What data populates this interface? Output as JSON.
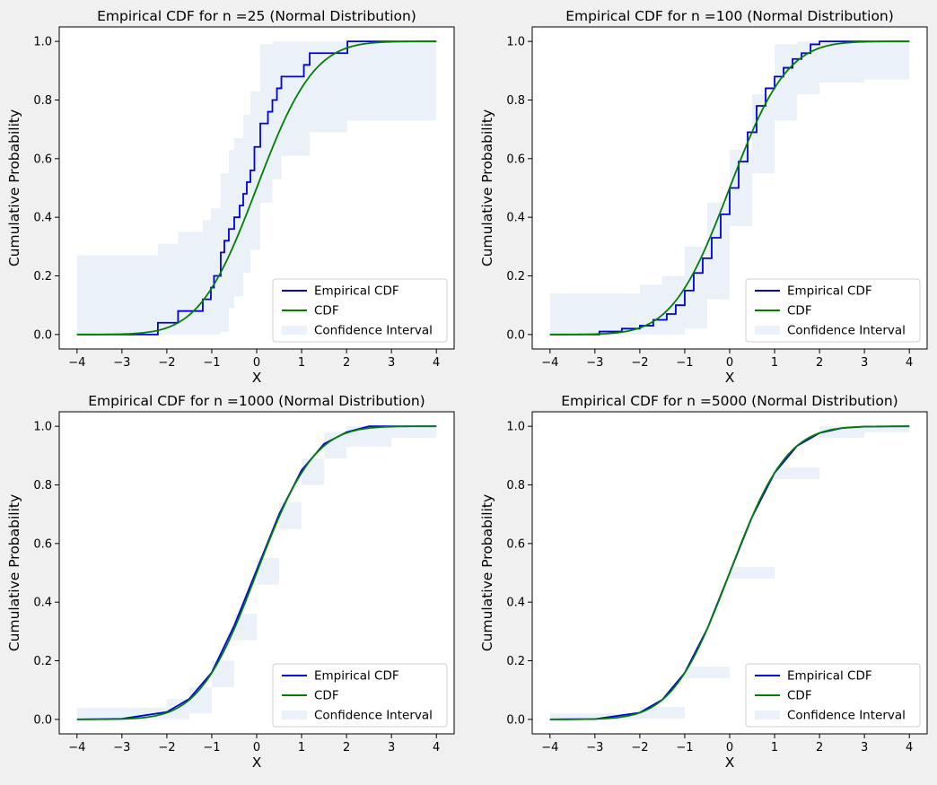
{
  "figure": {
    "background": "#f0f0f0"
  },
  "chart_data": [
    {
      "type": "line",
      "title": "Empirical CDF for n =25 (Normal Distribution)",
      "xlabel": "X",
      "ylabel": "Cumulative Probability",
      "xlim": [
        -4,
        4
      ],
      "ylim": [
        0,
        1
      ],
      "xticks": [
        -4,
        -3,
        -2,
        -1,
        0,
        1,
        2,
        3,
        4
      ],
      "yticks": [
        0.0,
        0.2,
        0.4,
        0.6,
        0.8,
        1.0
      ],
      "xtick_labels": [
        "−4",
        "−3",
        "−2",
        "−1",
        "0",
        "1",
        "2",
        "3",
        "4"
      ],
      "ytick_labels": [
        "0.0",
        "0.2",
        "0.4",
        "0.6",
        "0.8",
        "1.0"
      ],
      "grid": false,
      "legend": "lower-right",
      "colors": {
        "ecdf": "#0000e6",
        "cdf": "#008000",
        "band": "#eaf1f8"
      },
      "series": [
        {
          "name": "Empirical CDF",
          "kind": "step",
          "x": [
            -4,
            -2.2,
            -1.75,
            -1.2,
            -1.02,
            -0.95,
            -0.8,
            -0.72,
            -0.62,
            -0.5,
            -0.38,
            -0.3,
            -0.22,
            -0.14,
            -0.05,
            0.08,
            0.25,
            0.35,
            0.45,
            0.55,
            0.95,
            1.05,
            1.18,
            2.0,
            2.02,
            4
          ],
          "y": [
            0,
            0.04,
            0.08,
            0.12,
            0.16,
            0.2,
            0.28,
            0.32,
            0.36,
            0.4,
            0.44,
            0.48,
            0.52,
            0.56,
            0.64,
            0.72,
            0.76,
            0.8,
            0.84,
            0.88,
            0.88,
            0.92,
            0.96,
            0.96,
            1.0,
            1.0
          ]
        },
        {
          "name": "CDF",
          "kind": "normal-cdf",
          "mu": 0,
          "sigma": 1
        },
        {
          "name": "Confidence Interval",
          "kind": "band",
          "x": [
            -4,
            -2.2,
            -1.75,
            -1.2,
            -1.02,
            -0.8,
            -0.62,
            -0.5,
            -0.3,
            -0.14,
            0.08,
            0.35,
            0.55,
            1.18,
            2.02,
            4
          ],
          "lower": [
            0,
            0,
            0,
            0,
            0,
            0.01,
            0.09,
            0.13,
            0.21,
            0.29,
            0.45,
            0.53,
            0.61,
            0.69,
            0.73,
            0.73
          ],
          "upper": [
            0.27,
            0.31,
            0.35,
            0.39,
            0.43,
            0.55,
            0.63,
            0.67,
            0.75,
            0.83,
            0.99,
            1.0,
            1.0,
            1.0,
            1.0,
            1.0
          ]
        }
      ]
    },
    {
      "type": "line",
      "title": "Empirical CDF for n =100 (Normal Distribution)",
      "xlabel": "X",
      "ylabel": "Cumulative Probability",
      "xlim": [
        -4,
        4
      ],
      "ylim": [
        0,
        1
      ],
      "xticks": [
        -4,
        -3,
        -2,
        -1,
        0,
        1,
        2,
        3,
        4
      ],
      "yticks": [
        0.0,
        0.2,
        0.4,
        0.6,
        0.8,
        1.0
      ],
      "xtick_labels": [
        "−4",
        "−3",
        "−2",
        "−1",
        "0",
        "1",
        "2",
        "3",
        "4"
      ],
      "ytick_labels": [
        "0.0",
        "0.2",
        "0.4",
        "0.6",
        "0.8",
        "1.0"
      ],
      "grid": false,
      "legend": "lower-right",
      "colors": {
        "ecdf": "#0000e6",
        "cdf": "#008000",
        "band": "#eaf1f8"
      },
      "series": [
        {
          "name": "Empirical CDF",
          "kind": "step",
          "x": [
            -4,
            -2.9,
            -2.4,
            -2.0,
            -1.7,
            -1.4,
            -1.2,
            -1.0,
            -0.8,
            -0.6,
            -0.4,
            -0.2,
            0.0,
            0.2,
            0.4,
            0.6,
            0.8,
            1.0,
            1.2,
            1.4,
            1.6,
            1.8,
            2.0,
            4
          ],
          "y": [
            0,
            0.01,
            0.02,
            0.03,
            0.05,
            0.07,
            0.1,
            0.15,
            0.21,
            0.26,
            0.33,
            0.41,
            0.5,
            0.59,
            0.69,
            0.78,
            0.84,
            0.88,
            0.91,
            0.94,
            0.96,
            0.99,
            1.0,
            1.0
          ]
        },
        {
          "name": "CDF",
          "kind": "normal-cdf",
          "mu": 0,
          "sigma": 1
        },
        {
          "name": "Confidence Interval",
          "kind": "band",
          "x": [
            -4,
            -3,
            -2,
            -1.5,
            -1,
            -0.5,
            0,
            0.5,
            1,
            1.5,
            2,
            3,
            4
          ],
          "lower": [
            0,
            0,
            0,
            0,
            0.02,
            0.12,
            0.37,
            0.55,
            0.73,
            0.82,
            0.86,
            0.87,
            0.87
          ],
          "upper": [
            0.14,
            0.14,
            0.17,
            0.2,
            0.3,
            0.45,
            0.63,
            0.82,
            0.99,
            1.0,
            1.0,
            1.0,
            1.0
          ]
        }
      ]
    },
    {
      "type": "line",
      "title": "Empirical CDF for n =1000 (Normal Distribution)",
      "xlabel": "X",
      "ylabel": "Cumulative Probability",
      "xlim": [
        -4,
        4
      ],
      "ylim": [
        0,
        1
      ],
      "xticks": [
        -4,
        -3,
        -2,
        -1,
        0,
        1,
        2,
        3,
        4
      ],
      "yticks": [
        0.0,
        0.2,
        0.4,
        0.6,
        0.8,
        1.0
      ],
      "xtick_labels": [
        "−4",
        "−3",
        "−2",
        "−1",
        "0",
        "1",
        "2",
        "3",
        "4"
      ],
      "ytick_labels": [
        "0.0",
        "0.2",
        "0.4",
        "0.6",
        "0.8",
        "1.0"
      ],
      "grid": false,
      "legend": "lower-right",
      "colors": {
        "ecdf": "#0000e6",
        "cdf": "#008000",
        "band": "#eaf1f8"
      },
      "series": [
        {
          "name": "Empirical CDF",
          "kind": "line",
          "x": [
            -4,
            -3,
            -2,
            -1.5,
            -1,
            -0.5,
            0,
            0.5,
            1,
            1.5,
            2,
            2.5,
            3,
            4
          ],
          "y": [
            0,
            0.002,
            0.025,
            0.07,
            0.16,
            0.32,
            0.51,
            0.7,
            0.85,
            0.94,
            0.98,
            1.0,
            1.0,
            1.0
          ]
        },
        {
          "name": "CDF",
          "kind": "normal-cdf",
          "mu": 0,
          "sigma": 1
        },
        {
          "name": "Confidence Interval",
          "kind": "band",
          "x": [
            -4,
            -3,
            -2,
            -1.5,
            -1,
            -0.5,
            0,
            0.5,
            1,
            1.5,
            2,
            3,
            4
          ],
          "lower": [
            0,
            0,
            0,
            0.02,
            0.11,
            0.27,
            0.46,
            0.65,
            0.8,
            0.89,
            0.93,
            0.96,
            0.96
          ],
          "upper": [
            0.04,
            0.04,
            0.07,
            0.11,
            0.2,
            0.36,
            0.55,
            0.74,
            0.89,
            0.98,
            1.0,
            1.0,
            1.0
          ]
        }
      ]
    },
    {
      "type": "line",
      "title": "Empirical CDF for n =5000 (Normal Distribution)",
      "xlabel": "X",
      "ylabel": "Cumulative Probability",
      "xlim": [
        -4,
        4
      ],
      "ylim": [
        0,
        1
      ],
      "xticks": [
        -4,
        -3,
        -2,
        -1,
        0,
        1,
        2,
        3,
        4
      ],
      "yticks": [
        0.0,
        0.2,
        0.4,
        0.6,
        0.8,
        1.0
      ],
      "xtick_labels": [
        "−4",
        "−3",
        "−2",
        "−1",
        "0",
        "1",
        "2",
        "3",
        "4"
      ],
      "ytick_labels": [
        "0.0",
        "0.2",
        "0.4",
        "0.6",
        "0.8",
        "1.0"
      ],
      "grid": false,
      "legend": "lower-right",
      "colors": {
        "ecdf": "#0000e6",
        "cdf": "#008000",
        "band": "#eaf1f8"
      },
      "series": [
        {
          "name": "Empirical CDF",
          "kind": "line",
          "x": [
            -4,
            -3,
            -2,
            -1.5,
            -1,
            -0.5,
            0,
            0.5,
            1,
            1.5,
            2,
            2.5,
            3,
            4
          ],
          "y": [
            0,
            0.001,
            0.023,
            0.067,
            0.159,
            0.309,
            0.5,
            0.691,
            0.841,
            0.933,
            0.977,
            0.994,
            0.999,
            1.0
          ]
        },
        {
          "name": "CDF",
          "kind": "normal-cdf",
          "mu": 0,
          "sigma": 1
        },
        {
          "name": "Confidence Interval",
          "kind": "band",
          "x": [
            -4,
            -3,
            -2,
            -1,
            0,
            1,
            2,
            3,
            4
          ],
          "lower": [
            0,
            0,
            0.003,
            0.14,
            0.48,
            0.82,
            0.96,
            0.98,
            0.98
          ],
          "upper": [
            0.02,
            0.02,
            0.043,
            0.18,
            0.52,
            0.86,
            1.0,
            1.0,
            1.0
          ]
        }
      ]
    }
  ]
}
